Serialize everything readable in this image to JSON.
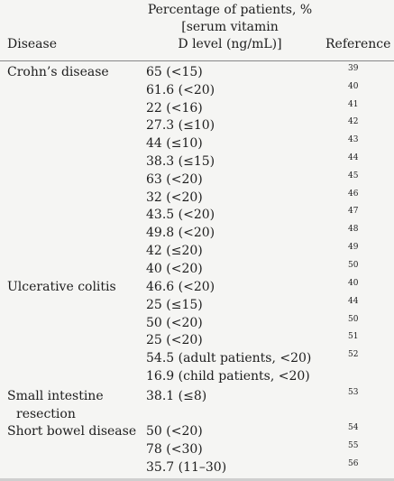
{
  "header": {
    "disease": "Disease",
    "percentage_line1": "Percentage of patients, %",
    "percentage_line2": "[serum vitamin",
    "percentage_line3": "D level (ng/mL)]",
    "reference": "Reference"
  },
  "groups": [
    {
      "disease_line1": "Crohn’s disease",
      "disease_line2": "",
      "rows": [
        {
          "value": "65 (<15)",
          "ref": "39"
        },
        {
          "value": "61.6 (<20)",
          "ref": "40"
        },
        {
          "value": "22 (<16)",
          "ref": "41"
        },
        {
          "value": "27.3 (≤10)",
          "ref": "42"
        },
        {
          "value": "44 (≤10)",
          "ref": "43"
        },
        {
          "value": "38.3 (≤15)",
          "ref": "44"
        },
        {
          "value": "63 (<20)",
          "ref": "45"
        },
        {
          "value": "32 (<20)",
          "ref": "46"
        },
        {
          "value": "43.5 (<20)",
          "ref": "47"
        },
        {
          "value": "49.8 (<20)",
          "ref": "48"
        },
        {
          "value": "42 (≤20)",
          "ref": "49"
        },
        {
          "value": "40 (<20)",
          "ref": "50"
        }
      ]
    },
    {
      "disease_line1": "Ulcerative colitis",
      "disease_line2": "",
      "rows": [
        {
          "value": "46.6 (<20)",
          "ref": "40"
        },
        {
          "value": "25 (≤15)",
          "ref": "44"
        },
        {
          "value": "50 (<20)",
          "ref": "50"
        },
        {
          "value": "25 (<20)",
          "ref": "51"
        },
        {
          "value": "54.5 (adult patients, <20)",
          "ref": "52"
        },
        {
          "value": "16.9 (child patients, <20)",
          "ref": ""
        }
      ]
    },
    {
      "disease_line1": "Small intestine",
      "disease_line2": "resection",
      "rows": [
        {
          "value": "38.1 (≤8)",
          "ref": "53"
        }
      ]
    },
    {
      "disease_line1": "Short bowel disease",
      "disease_line2": "",
      "rows": [
        {
          "value": "50 (<20)",
          "ref": "54"
        },
        {
          "value": "78 (<30)",
          "ref": "55"
        },
        {
          "value": "35.7 (11–30)",
          "ref": "56"
        }
      ]
    }
  ]
}
